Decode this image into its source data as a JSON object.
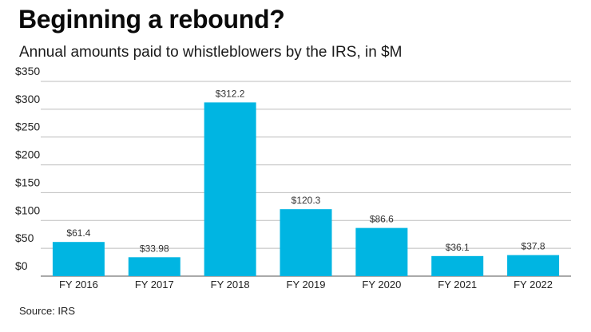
{
  "header": {
    "title": "Beginning a rebound?",
    "subtitle": "Annual amounts paid to whistleblowers by the IRS, in $M"
  },
  "footer": {
    "source": "Source: IRS"
  },
  "chart_data": {
    "type": "bar",
    "title": "Beginning a rebound?",
    "subtitle": "Annual amounts paid to whistleblowers by the IRS, in $M",
    "categories": [
      "FY 2016",
      "FY 2017",
      "FY 2018",
      "FY 2019",
      "FY 2020",
      "FY 2021",
      "FY 2022"
    ],
    "values": [
      61.4,
      33.98,
      312.2,
      120.3,
      86.6,
      36.1,
      37.8
    ],
    "data_labels": [
      "$61.4",
      "$33.98",
      "$312.2",
      "$120.3",
      "$86.6",
      "$36.1",
      "$37.8"
    ],
    "y_ticks": [
      0,
      50,
      100,
      150,
      200,
      250,
      300,
      350
    ],
    "y_tick_labels": [
      "$0",
      "$50",
      "$100",
      "$150",
      "$200",
      "$250",
      "$300",
      "$350"
    ],
    "ylim": [
      0,
      350
    ],
    "grid": true,
    "colors": {
      "bar": "#00b5e2",
      "grid": "#bdbdbd",
      "axis": "#555555"
    }
  }
}
